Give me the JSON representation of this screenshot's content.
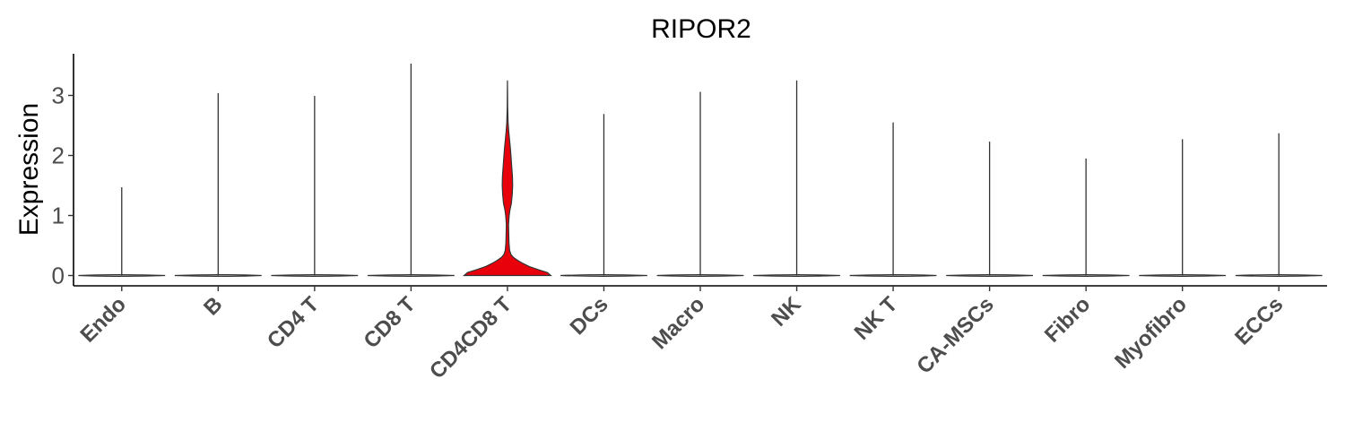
{
  "chart_data": {
    "type": "violin",
    "title": "RIPOR2",
    "xlabel": "",
    "ylabel": "Expression",
    "ylim": [
      -0.2,
      3.7
    ],
    "yticks": [
      0,
      1,
      2,
      3
    ],
    "grid": false,
    "legend": "none",
    "categories": [
      "Endo",
      "B",
      "CD4 T",
      "CD8 T",
      "CD4CD8 T",
      "DCs",
      "Macro",
      "NK",
      "NK T",
      "CA-MSCs",
      "Fibro",
      "Myofibro",
      "ECCs"
    ],
    "max_values": [
      1.47,
      3.04,
      2.99,
      3.53,
      3.25,
      2.69,
      3.06,
      3.25,
      2.55,
      2.23,
      1.95,
      2.27,
      2.37
    ],
    "fill_colors": [
      "#e8e8e8",
      "#e8e8e8",
      "#e8e8e8",
      "#e8e8e8",
      "#e8000b",
      "#e8e8e8",
      "#e8e8e8",
      "#e8e8e8",
      "#e8e8e8",
      "#e8e8e8",
      "#e8e8e8",
      "#e8e8e8",
      "#e8e8e8"
    ],
    "highlight": {
      "category": "CD4CD8 T",
      "color": "#e8000b",
      "density_profile": [
        [
          0.0,
          1.0
        ],
        [
          0.05,
          0.92
        ],
        [
          0.1,
          0.7
        ],
        [
          0.15,
          0.5
        ],
        [
          0.2,
          0.36
        ],
        [
          0.25,
          0.24
        ],
        [
          0.3,
          0.14
        ],
        [
          0.35,
          0.08
        ],
        [
          0.42,
          0.05
        ],
        [
          0.55,
          0.035
        ],
        [
          0.7,
          0.03
        ],
        [
          0.85,
          0.025
        ],
        [
          1.0,
          0.04
        ],
        [
          1.1,
          0.06
        ],
        [
          1.2,
          0.09
        ],
        [
          1.35,
          0.11
        ],
        [
          1.5,
          0.12
        ],
        [
          1.65,
          0.115
        ],
        [
          1.8,
          0.1
        ],
        [
          1.95,
          0.085
        ],
        [
          2.1,
          0.07
        ],
        [
          2.25,
          0.05
        ],
        [
          2.4,
          0.03
        ],
        [
          2.55,
          0.015
        ],
        [
          2.8,
          0.005
        ],
        [
          3.0,
          0.003
        ],
        [
          3.25,
          0.0
        ]
      ]
    }
  }
}
